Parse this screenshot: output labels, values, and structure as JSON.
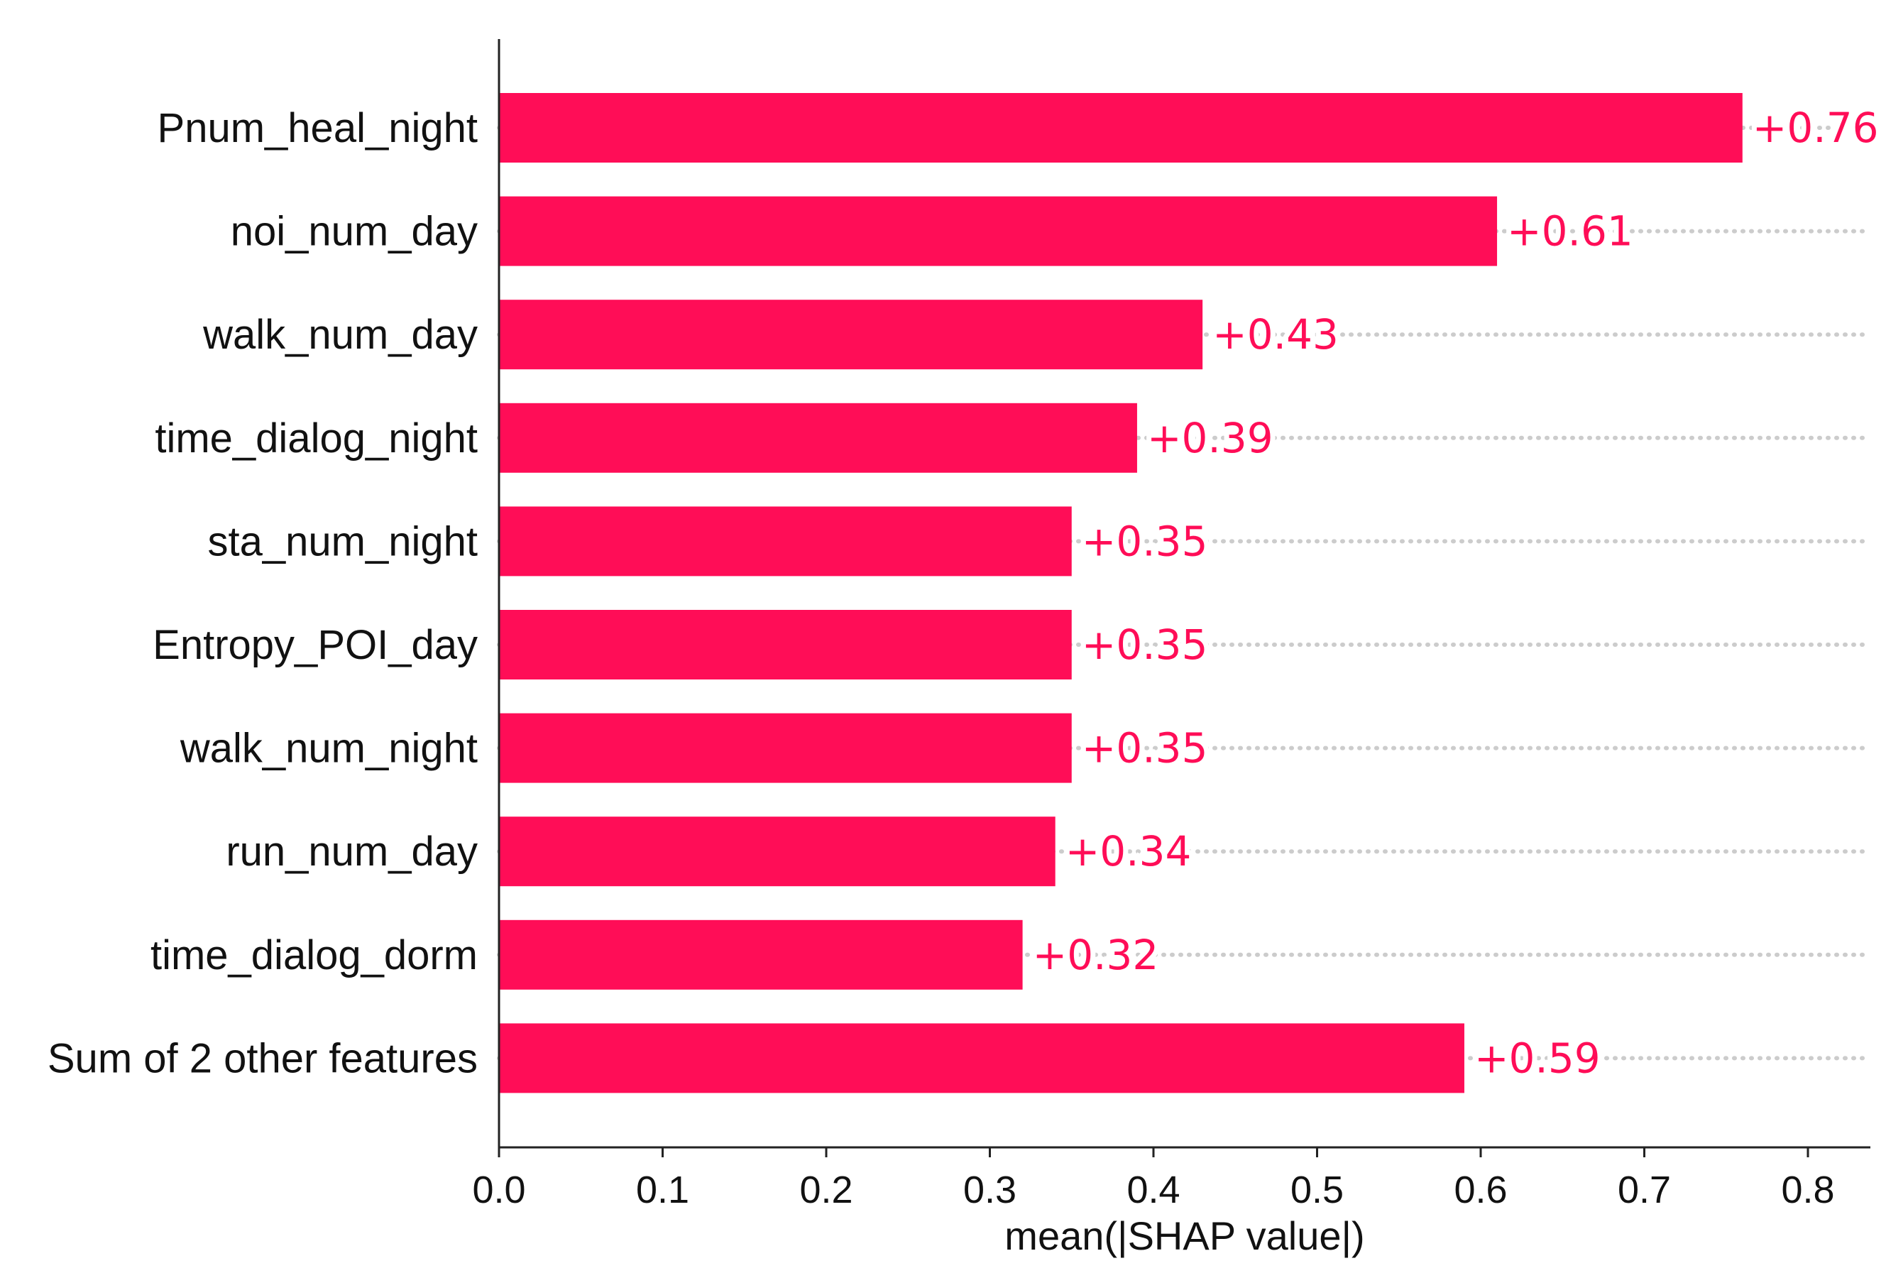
{
  "chart_data": {
    "type": "bar",
    "orientation": "horizontal",
    "categories": [
      "Pnum_heal_night",
      "noi_num_day",
      "walk_num_day",
      "time_dialog_night",
      "sta_num_night",
      "Entropy_POI_day",
      "walk_num_night",
      "run_num_day",
      "time_dialog_dorm",
      "Sum of 2 other features"
    ],
    "values": [
      0.76,
      0.61,
      0.43,
      0.39,
      0.35,
      0.35,
      0.35,
      0.34,
      0.32,
      0.59
    ],
    "value_labels": [
      "+0.76",
      "+0.61",
      "+0.43",
      "+0.39",
      "+0.35",
      "+0.35",
      "+0.35",
      "+0.34",
      "+0.32",
      "+0.59"
    ],
    "xlabel": "mean(|SHAP value|)",
    "ylabel": "",
    "title": "",
    "xlim": [
      0.0,
      0.835
    ],
    "x_ticks": [
      0.0,
      0.1,
      0.2,
      0.3,
      0.4,
      0.5,
      0.6,
      0.7,
      0.8
    ],
    "x_tick_labels": [
      "0.0",
      "0.1",
      "0.2",
      "0.3",
      "0.4",
      "0.5",
      "0.6",
      "0.7",
      "0.8"
    ],
    "grid": false,
    "legend": "none",
    "colors": {
      "bar": "#ff0d57",
      "value_text": "#ff0d57",
      "dotted_guide": "#cccccc",
      "axis": "#222222",
      "text": "#111111"
    }
  }
}
